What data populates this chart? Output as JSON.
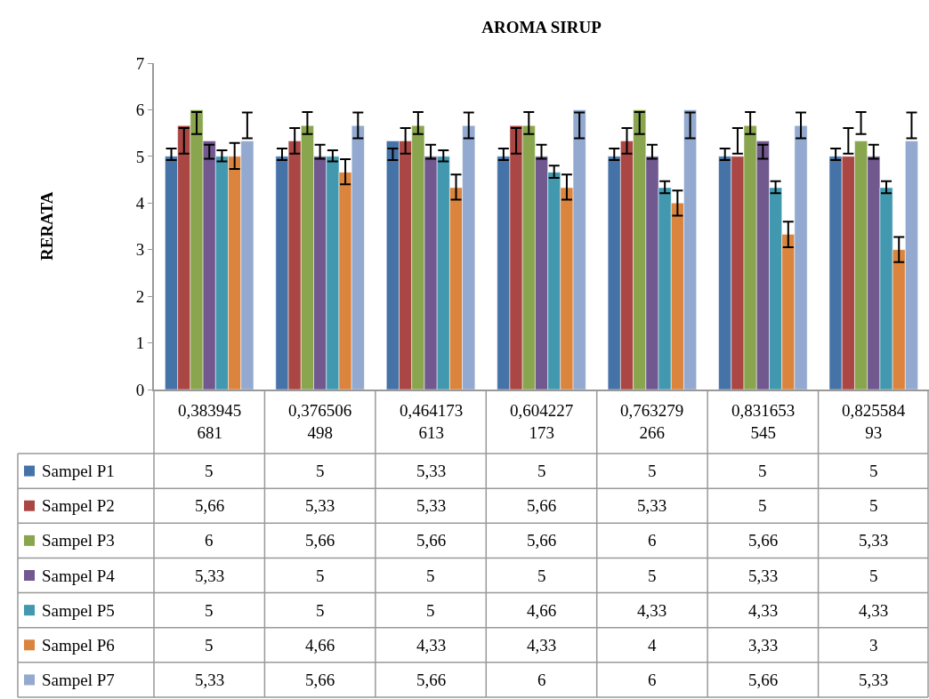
{
  "chart_data": {
    "type": "bar",
    "title": "AROMA SIRUP",
    "ylabel": "RERATA",
    "categories": [
      "0,383945681",
      "0,376506498",
      "0,464173613",
      "0,604227173",
      "0,763279266",
      "0,831653545",
      "0,82558493"
    ],
    "ylim": [
      0,
      7
    ],
    "yticks": [
      0,
      1,
      2,
      3,
      4,
      5,
      6,
      7
    ],
    "grid": false,
    "legend": "bottom",
    "series": [
      {
        "name": "Sampel P1",
        "color": "#4572a7",
        "values": [
          5,
          5,
          5.33,
          5,
          5,
          5,
          5
        ],
        "value_labels": [
          "5",
          "5",
          "5,33",
          "5",
          "5",
          "5",
          "5"
        ],
        "errors": [
          [
            4.92,
            5.17
          ],
          [
            4.92,
            5.17
          ],
          [
            4.92,
            5.17
          ],
          [
            4.92,
            5.17
          ],
          [
            4.92,
            5.17
          ],
          [
            4.92,
            5.17
          ],
          [
            4.92,
            5.17
          ]
        ]
      },
      {
        "name": "Sampel P2",
        "color": "#aa4643",
        "values": [
          5.66,
          5.33,
          5.33,
          5.66,
          5.33,
          5,
          5
        ],
        "value_labels": [
          "5,66",
          "5,33",
          "5,33",
          "5,66",
          "5,33",
          "5",
          "5"
        ],
        "errors": [
          [
            5.06,
            5.61
          ],
          [
            5.06,
            5.61
          ],
          [
            5.06,
            5.61
          ],
          [
            5.06,
            5.61
          ],
          [
            5.06,
            5.61
          ],
          [
            5.06,
            5.61
          ],
          [
            5.06,
            5.61
          ]
        ]
      },
      {
        "name": "Sampel P3",
        "color": "#89a54e",
        "values": [
          6,
          5.66,
          5.66,
          5.66,
          6,
          5.66,
          5.33
        ],
        "value_labels": [
          "6",
          "5,66",
          "5,66",
          "5,66",
          "6",
          "5,66",
          "5,33"
        ],
        "errors": [
          [
            5.48,
            5.95
          ],
          [
            5.48,
            5.95
          ],
          [
            5.48,
            5.95
          ],
          [
            5.48,
            5.95
          ],
          [
            5.48,
            5.95
          ],
          [
            5.48,
            5.95
          ],
          [
            5.48,
            5.95
          ]
        ]
      },
      {
        "name": "Sampel P4",
        "color": "#71588f",
        "values": [
          5.33,
          5,
          5,
          5,
          5,
          5.33,
          5
        ],
        "value_labels": [
          "5,33",
          "5",
          "5",
          "5",
          "5",
          "5,33",
          "5"
        ],
        "errors": [
          [
            4.95,
            5.25
          ],
          [
            4.95,
            5.25
          ],
          [
            4.95,
            5.25
          ],
          [
            4.95,
            5.25
          ],
          [
            4.95,
            5.25
          ],
          [
            4.95,
            5.25
          ],
          [
            4.95,
            5.25
          ]
        ]
      },
      {
        "name": "Sampel P5",
        "color": "#4198af",
        "values": [
          5,
          5,
          5,
          4.66,
          4.33,
          4.33,
          4.33
        ],
        "value_labels": [
          "5",
          "5",
          "5",
          "4,66",
          "4,33",
          "4,33",
          "4,33"
        ],
        "errors": [
          [
            4.89,
            5.13
          ],
          [
            4.89,
            5.13
          ],
          [
            4.89,
            5.13
          ],
          [
            4.54,
            4.8
          ],
          [
            4.21,
            4.47
          ],
          [
            4.21,
            4.47
          ],
          [
            4.21,
            4.47
          ]
        ]
      },
      {
        "name": "Sampel P6",
        "color": "#db843d",
        "values": [
          5,
          4.66,
          4.33,
          4.33,
          4,
          3.33,
          3
        ],
        "value_labels": [
          "5",
          "4,66",
          "4,33",
          "4,33",
          "4",
          "3,33",
          "3"
        ],
        "errors": [
          [
            4.73,
            5.29
          ],
          [
            4.4,
            4.94
          ],
          [
            4.07,
            4.61
          ],
          [
            4.07,
            4.61
          ],
          [
            3.73,
            4.27
          ],
          [
            3.05,
            3.6
          ],
          [
            2.73,
            3.27
          ]
        ]
      },
      {
        "name": "Sampel P7",
        "color": "#93a9cf",
        "values": [
          5.33,
          5.66,
          5.66,
          6,
          6,
          5.66,
          5.33
        ],
        "value_labels": [
          "5,33",
          "5,66",
          "5,66",
          "6",
          "6",
          "5,66",
          "5,33"
        ],
        "errors": [
          [
            5.39,
            5.94
          ],
          [
            5.39,
            5.94
          ],
          [
            5.39,
            5.94
          ],
          [
            5.39,
            5.94
          ],
          [
            5.39,
            5.94
          ],
          [
            5.39,
            5.94
          ],
          [
            5.39,
            5.94
          ]
        ]
      }
    ]
  }
}
